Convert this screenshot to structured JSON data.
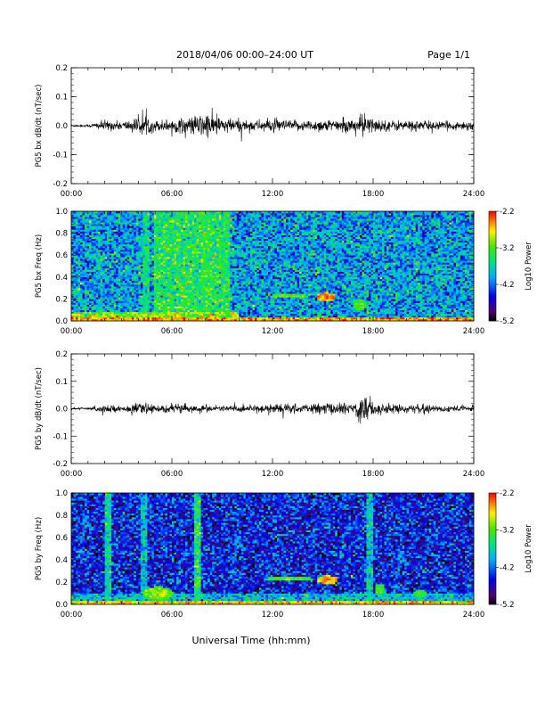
{
  "header": {
    "title": "2018/04/06  00:00–24:00 UT",
    "page": "Page 1/1"
  },
  "footer": {
    "xlabel": "Universal Time (hh:mm)"
  },
  "colors": {
    "trace": "#000000",
    "background": "#ffffff"
  },
  "chart_data": [
    {
      "type": "line",
      "panel": "bx-waveform",
      "ylabel": "PG5 bx dB/dt (nT/sec)",
      "x_ticks": [
        "00:00",
        "06:00",
        "12:00",
        "18:00",
        "24:00"
      ],
      "xlim_hours": [
        0,
        24
      ],
      "ylim": [
        -0.2,
        0.2
      ],
      "y_ticks": [
        "0.2",
        "0.1",
        "0.0",
        "-0.1",
        "-0.2"
      ],
      "series": [
        {
          "x_hours": [
            0,
            1,
            2,
            3,
            4,
            4.5,
            5,
            6,
            7,
            8,
            8.5,
            9,
            10,
            11,
            12,
            13,
            14,
            15,
            16,
            17,
            17.5,
            18,
            19,
            20,
            21,
            22,
            23,
            24
          ],
          "envelope": [
            0.004,
            0.005,
            0.02,
            0.015,
            0.03,
            0.035,
            0.02,
            0.025,
            0.03,
            0.05,
            0.04,
            0.03,
            0.025,
            0.02,
            0.025,
            0.02,
            0.02,
            0.025,
            0.02,
            0.03,
            0.05,
            0.025,
            0.02,
            0.02,
            0.02,
            0.015,
            0.015,
            0.02
          ]
        }
      ]
    },
    {
      "type": "heatmap",
      "panel": "bx-spectrogram",
      "ylabel": "PG5 bx Freq (Hz)",
      "x_ticks": [
        "00:00",
        "06:00",
        "12:00",
        "18:00",
        "24:00"
      ],
      "xlim_hours": [
        0,
        24
      ],
      "ylim": [
        0,
        1.0
      ],
      "y_ticks": [
        "1.0",
        "0.8",
        "0.6",
        "0.4",
        "0.2",
        "0.0"
      ],
      "colorbar": {
        "label": "Log10 Power",
        "ticks": [
          "-2.2",
          "-3.2",
          "-4.2",
          "-5.2"
        ],
        "range": [
          -5.2,
          -2.2
        ]
      },
      "background_level": -4.0,
      "features": [
        {
          "kind": "band",
          "t0": 0,
          "t1": 24,
          "f0": 0.0,
          "f1": 0.03,
          "level": -2.6
        },
        {
          "kind": "block",
          "t0": 5,
          "t1": 9.5,
          "f0": 0.0,
          "f1": 1.0,
          "level": -3.5
        },
        {
          "kind": "block",
          "t0": 0,
          "t1": 10,
          "f0": 0.0,
          "f1": 0.08,
          "level": -3.1
        },
        {
          "kind": "blob",
          "tc": 13,
          "fc": 0.23,
          "dt": 1.2,
          "df": 0.02,
          "level": -3.3
        },
        {
          "kind": "blob",
          "tc": 15.2,
          "fc": 0.22,
          "dt": 0.6,
          "df": 0.04,
          "level": -2.7
        },
        {
          "kind": "blob",
          "tc": 17.2,
          "fc": 0.15,
          "dt": 0.4,
          "df": 0.05,
          "level": -3.4
        },
        {
          "kind": "stripe",
          "t": 4.5,
          "level": -3.6
        },
        {
          "kind": "stripe",
          "t": 8,
          "level": -3.6
        }
      ]
    },
    {
      "type": "line",
      "panel": "by-waveform",
      "ylabel": "PG5 by dB/dt (nT/sec)",
      "x_ticks": [
        "00:00",
        "06:00",
        "12:00",
        "18:00",
        "24:00"
      ],
      "xlim_hours": [
        0,
        24
      ],
      "ylim": [
        -0.2,
        0.2
      ],
      "y_ticks": [
        "0.2",
        "0.1",
        "0.0",
        "-0.1",
        "-0.2"
      ],
      "series": [
        {
          "x_hours": [
            0,
            1,
            2,
            3,
            4,
            4.5,
            5,
            6,
            7,
            8,
            9,
            10,
            11,
            12,
            13,
            14,
            15,
            16,
            17,
            17.5,
            18,
            18.5,
            19,
            20,
            21,
            22,
            23,
            24
          ],
          "envelope": [
            0.004,
            0.005,
            0.015,
            0.01,
            0.02,
            0.02,
            0.012,
            0.02,
            0.015,
            0.015,
            0.012,
            0.012,
            0.015,
            0.02,
            0.02,
            0.015,
            0.025,
            0.02,
            0.03,
            0.08,
            0.03,
            0.02,
            0.02,
            0.015,
            0.015,
            0.015,
            0.012,
            0.015
          ]
        }
      ]
    },
    {
      "type": "heatmap",
      "panel": "by-spectrogram",
      "ylabel": "PG5 by Freq (Hz)",
      "x_ticks": [
        "00:00",
        "06:00",
        "12:00",
        "18:00",
        "24:00"
      ],
      "xlim_hours": [
        0,
        24
      ],
      "ylim": [
        0,
        1.0
      ],
      "y_ticks": [
        "1.0",
        "0.8",
        "0.6",
        "0.4",
        "0.2",
        "0.0"
      ],
      "colorbar": {
        "label": "Log10 Power",
        "ticks": [
          "-2.2",
          "-3.2",
          "-4.2",
          "-5.2"
        ],
        "range": [
          -5.2,
          -2.2
        ]
      },
      "background_level": -4.5,
      "features": [
        {
          "kind": "band",
          "t0": 0,
          "t1": 24,
          "f0": 0.0,
          "f1": 0.03,
          "level": -2.7
        },
        {
          "kind": "block",
          "t0": 0,
          "t1": 24,
          "f0": 0.0,
          "f1": 0.1,
          "level": -3.9
        },
        {
          "kind": "stripe",
          "t": 2.2,
          "level": -3.7
        },
        {
          "kind": "stripe",
          "t": 4.3,
          "level": -3.9
        },
        {
          "kind": "stripe",
          "t": 7.6,
          "level": -3.5
        },
        {
          "kind": "stripe",
          "t": 17.8,
          "level": -3.8
        },
        {
          "kind": "blob",
          "tc": 5.2,
          "fc": 0.1,
          "dt": 0.9,
          "df": 0.06,
          "level": -3.2
        },
        {
          "kind": "blob",
          "tc": 13,
          "fc": 0.23,
          "dt": 1.5,
          "df": 0.02,
          "level": -3.4
        },
        {
          "kind": "blob",
          "tc": 15.3,
          "fc": 0.22,
          "dt": 0.6,
          "df": 0.04,
          "level": -2.8
        },
        {
          "kind": "blob",
          "tc": 18.4,
          "fc": 0.14,
          "dt": 0.3,
          "df": 0.05,
          "level": -3.4
        },
        {
          "kind": "blob",
          "tc": 20.8,
          "fc": 0.1,
          "dt": 0.4,
          "df": 0.04,
          "level": -3.5
        }
      ]
    }
  ]
}
